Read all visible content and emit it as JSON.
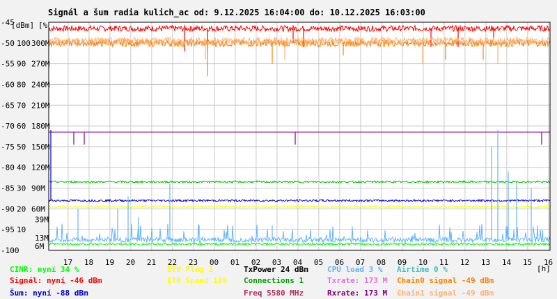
{
  "chart_data": {
    "type": "line",
    "title": "Signál a šum radia kulich_ac od: 9.12.2025 16:04:00 do: 10.12.2025 16:03:00",
    "unit_top_left": "[dBm]",
    "unit_top_mid": "[%]",
    "x_unit": "[h]",
    "x_ticks": [
      "17",
      "18",
      "19",
      "20",
      "21",
      "22",
      "23",
      "00",
      "01",
      "02",
      "03",
      "04",
      "05",
      "06",
      "07",
      "08",
      "09",
      "10",
      "11",
      "12",
      "13",
      "14",
      "15",
      "16"
    ],
    "dbm_ticks": [
      "-45",
      "-50",
      "-55",
      "-60",
      "-65",
      "-70",
      "-75",
      "-80",
      "-85",
      "-90",
      "-95",
      "-100"
    ],
    "pct_ticks": [
      "100",
      "90",
      "80",
      "70",
      "60",
      "50",
      "40",
      "30",
      "20",
      "10"
    ],
    "rate_ticks": [
      "300M",
      "270M",
      "240M",
      "210M",
      "180M",
      "150M",
      "120M",
      "90M",
      "60M"
    ],
    "extra_ticks": [
      {
        "label": "39M",
        "color": "#e070e0"
      },
      {
        "label": "13M",
        "color": "#e070e0"
      },
      {
        "label": "6M",
        "color": "#e070e0"
      }
    ],
    "ylim_dbm": [
      -100,
      -45
    ],
    "series": [
      {
        "name": "Signál",
        "color": "#ff0000",
        "baseline": -46.5,
        "spikes": [
          [
            6.5,
            -52
          ],
          [
            7.6,
            -52
          ],
          [
            11.7,
            -50
          ],
          [
            12.2,
            -51
          ],
          [
            18.3,
            -51
          ],
          [
            19.6,
            -51
          ],
          [
            21.3,
            -49
          ]
        ]
      },
      {
        "name": "Chain0 signal",
        "color": "#ff8000",
        "baseline": -50,
        "spikes": [
          [
            7.6,
            -58
          ],
          [
            10.7,
            -55
          ],
          [
            14.1,
            -53
          ],
          [
            19.0,
            -54
          ],
          [
            20.8,
            -54
          ]
        ]
      },
      {
        "name": "Chain1 signal",
        "color": "#ffb070",
        "baseline": -49.5,
        "spikes": [
          [
            7.5,
            -54
          ],
          [
            11.3,
            -54
          ],
          [
            17.9,
            -55
          ],
          [
            21.5,
            -55
          ]
        ]
      },
      {
        "name": "Txrate",
        "color": "#800080",
        "baseline": -71.5,
        "spikes": [
          [
            1.2,
            -74.5
          ],
          [
            1.7,
            -74.5
          ],
          [
            11.8,
            -74.5
          ],
          [
            23.6,
            -74.5
          ]
        ]
      },
      {
        "name": "Connections",
        "color": "#00c000",
        "baseline": -83.5,
        "spikes": []
      },
      {
        "name": "Šum",
        "color": "#0000cc",
        "baseline": -88,
        "spikes": [
          [
            0.1,
            -71
          ]
        ]
      },
      {
        "name": "ETH Speed",
        "color": "#ffff00",
        "baseline": -89.5,
        "spikes": []
      },
      {
        "name": "CPU load",
        "color": "#66b2ff",
        "baseline": -97.5,
        "spikes": [
          [
            1.4,
            -90
          ],
          [
            3.3,
            -90
          ],
          [
            3.8,
            -87
          ],
          [
            4.3,
            -92
          ],
          [
            5.8,
            -84
          ],
          [
            7.2,
            -94
          ],
          [
            10.7,
            -94
          ],
          [
            21.2,
            -75
          ],
          [
            21.5,
            -71
          ],
          [
            22.0,
            -81
          ],
          [
            22.4,
            -84
          ],
          [
            23.1,
            -85
          ]
        ]
      },
      {
        "name": "CINR",
        "color": "#00ff00",
        "baseline": -98.5,
        "spikes": []
      }
    ],
    "legend": [
      [
        {
          "text": "CINR: nyní 34 %",
          "color": "#00ff00"
        },
        {
          "text": "Signál: nyní -46 dBm",
          "color": "#ff0000"
        },
        {
          "text": "Šum: nyní -88 dBm",
          "color": "#0000cc"
        }
      ],
      [
        {
          "text": "ETH Plug 1",
          "color": "#ffff00"
        },
        {
          "text": "ETH Speed 100",
          "color": "#ffff00"
        }
      ],
      [
        {
          "text": "TxPower 24 dBm",
          "color": "#000000"
        },
        {
          "text": "Connections 1",
          "color": "#00a000"
        },
        {
          "text": "Freq 5580 MHz",
          "color": "#b03060"
        }
      ],
      [
        {
          "text": "CPU load 3 %",
          "color": "#66b2ff"
        },
        {
          "text": "Txrate: 173 M",
          "color": "#e070e0"
        },
        {
          "text": "Rxrate: 173 M",
          "color": "#800080"
        }
      ],
      [
        {
          "text": "Airtime 0 %",
          "color": "#40c0c0"
        },
        {
          "text": "Chain0 signal -49 dBm",
          "color": "#ff8000"
        },
        {
          "text": "Chain1 signal -49 dBm",
          "color": "#ffb070"
        }
      ]
    ]
  }
}
